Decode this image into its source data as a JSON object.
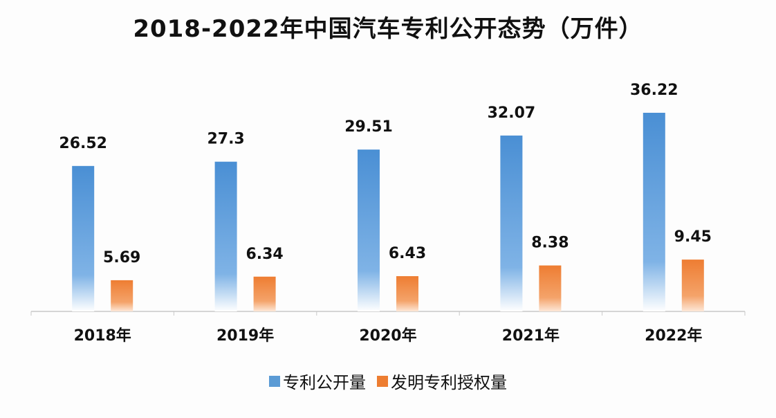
{
  "chart_data": {
    "type": "bar",
    "title": "2018-2022年中国汽车专利公开态势（万件）",
    "categories": [
      "2018年",
      "2019年",
      "2020年",
      "2021年",
      "2022年"
    ],
    "series": [
      {
        "name": "专利公开量",
        "values": [
          26.52,
          27.3,
          29.51,
          32.07,
          36.22
        ],
        "labels": [
          "26.52",
          "27.3",
          "29.51",
          "32.07",
          "36.22"
        ],
        "color": "#4a8fd4"
      },
      {
        "name": "发明专利授权量",
        "values": [
          5.69,
          6.34,
          6.43,
          8.38,
          9.45
        ],
        "labels": [
          "5.69",
          "6.34",
          "6.43",
          "8.38",
          "9.45"
        ],
        "color": "#ee7d32"
      }
    ],
    "xlabel": "",
    "ylabel": "",
    "ylim": [
      0,
      40
    ],
    "grid": false,
    "legend": "bottom"
  }
}
